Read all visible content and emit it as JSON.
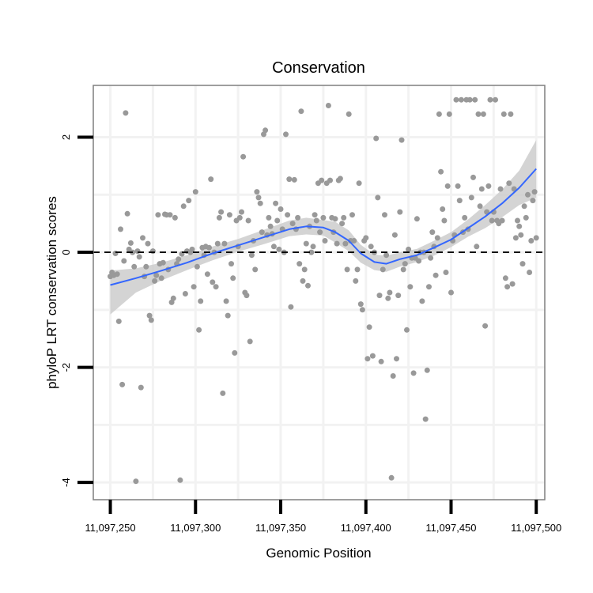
{
  "chart_data": {
    "type": "scatter",
    "title": "Conservation",
    "xlabel": "Genomic Position",
    "ylabel": "phyloP LRT conservation scores",
    "xlim": [
      11097240,
      11097505
    ],
    "ylim": [
      -4.3,
      2.9
    ],
    "grid": true,
    "x_ticks": [
      11097250,
      11097300,
      11097350,
      11097400,
      11097450,
      11097500
    ],
    "x_tick_labels": [
      "11,097,250",
      "11,097,300",
      "11,097,350",
      "11,097,400",
      "11,097,450",
      "11,097,500"
    ],
    "y_ticks": [
      -4,
      -2,
      0,
      2
    ],
    "y_tick_labels": [
      "-4",
      "-2",
      "0",
      "2"
    ],
    "reference_line": {
      "y": 0,
      "style": "dashed",
      "color": "#000000"
    },
    "colors": {
      "points": "#999999",
      "smooth": "#3366ff",
      "ribbon": "#cccccc",
      "panel_border": "#7f7f7f",
      "grid": "#f2f2f2"
    },
    "smooth": {
      "x": [
        11097250,
        11097265,
        11097280,
        11097295,
        11097310,
        11097325,
        11097340,
        11097355,
        11097365,
        11097375,
        11097382,
        11097390,
        11097397,
        11097405,
        11097412,
        11097420,
        11097430,
        11097440,
        11097450,
        11097460,
        11097470,
        11097480,
        11097490,
        11097500
      ],
      "y": [
        -0.57,
        -0.45,
        -0.32,
        -0.18,
        -0.02,
        0.12,
        0.26,
        0.4,
        0.45,
        0.43,
        0.35,
        0.2,
        -0.02,
        -0.17,
        -0.2,
        -0.12,
        -0.05,
        0.08,
        0.22,
        0.42,
        0.62,
        0.85,
        1.12,
        1.45
      ],
      "upper": [
        -0.32,
        -0.28,
        -0.18,
        -0.05,
        0.1,
        0.23,
        0.39,
        0.55,
        0.6,
        0.56,
        0.53,
        0.38,
        0.13,
        -0.04,
        -0.06,
        0.0,
        0.06,
        0.2,
        0.35,
        0.57,
        0.82,
        1.09,
        1.42,
        1.95
      ],
      "lower": [
        -1.08,
        -0.7,
        -0.49,
        -0.31,
        -0.14,
        0.01,
        0.14,
        0.28,
        0.31,
        0.29,
        0.17,
        0.02,
        -0.18,
        -0.31,
        -0.34,
        -0.25,
        -0.17,
        -0.06,
        0.09,
        0.27,
        0.42,
        0.61,
        0.82,
        0.95
      ]
    },
    "points": [
      [
        11097250,
        -0.42
      ],
      [
        11097251,
        -0.35
      ],
      [
        11097252,
        -0.4
      ],
      [
        11097253,
        -0.02
      ],
      [
        11097254,
        -0.38
      ],
      [
        11097255,
        -1.2
      ],
      [
        11097256,
        0.4
      ],
      [
        11097257,
        -2.3
      ],
      [
        11097258,
        -0.15
      ],
      [
        11097259,
        2.42
      ],
      [
        11097260,
        0.67
      ],
      [
        11097261,
        0.05
      ],
      [
        11097262,
        0.16
      ],
      [
        11097263,
        0.0
      ],
      [
        11097264,
        -0.25
      ],
      [
        11097265,
        -3.98
      ],
      [
        11097266,
        0.02
      ],
      [
        11097267,
        -0.08
      ],
      [
        11097268,
        -2.35
      ],
      [
        11097269,
        0.25
      ],
      [
        11097270,
        -0.42
      ],
      [
        11097271,
        -0.25
      ],
      [
        11097272,
        0.15
      ],
      [
        11097273,
        -1.1
      ],
      [
        11097274,
        -1.18
      ],
      [
        11097275,
        0.02
      ],
      [
        11097276,
        -0.5
      ],
      [
        11097277,
        -0.4
      ],
      [
        11097278,
        0.65
      ],
      [
        11097279,
        -0.2
      ],
      [
        11097280,
        -0.45
      ],
      [
        11097281,
        -0.18
      ],
      [
        11097282,
        0.66
      ],
      [
        11097283,
        0.65
      ],
      [
        11097284,
        -0.3
      ],
      [
        11097285,
        0.65
      ],
      [
        11097286,
        -0.87
      ],
      [
        11097287,
        -0.8
      ],
      [
        11097288,
        0.6
      ],
      [
        11097289,
        -0.2
      ],
      [
        11097290,
        -0.12
      ],
      [
        11097291,
        -3.96
      ],
      [
        11097292,
        -0.03
      ],
      [
        11097293,
        0.8
      ],
      [
        11097294,
        -0.72
      ],
      [
        11097295,
        0.02
      ],
      [
        11097296,
        0.9
      ],
      [
        11097297,
        0.0
      ],
      [
        11097298,
        0.05
      ],
      [
        11097299,
        -0.6
      ],
      [
        11097300,
        1.05
      ],
      [
        11097301,
        -0.25
      ],
      [
        11097302,
        -1.35
      ],
      [
        11097303,
        -0.85
      ],
      [
        11097304,
        0.08
      ],
      [
        11097305,
        -0.05
      ],
      [
        11097306,
        0.1
      ],
      [
        11097307,
        -0.38
      ],
      [
        11097308,
        0.08
      ],
      [
        11097309,
        1.27
      ],
      [
        11097310,
        -0.52
      ],
      [
        11097311,
        0.0
      ],
      [
        11097312,
        -0.6
      ],
      [
        11097313,
        0.15
      ],
      [
        11097314,
        0.6
      ],
      [
        11097315,
        0.7
      ],
      [
        11097316,
        -2.45
      ],
      [
        11097317,
        0.15
      ],
      [
        11097318,
        -0.85
      ],
      [
        11097319,
        -1.1
      ],
      [
        11097320,
        0.65
      ],
      [
        11097321,
        -0.2
      ],
      [
        11097322,
        -0.45
      ],
      [
        11097323,
        -1.75
      ],
      [
        11097324,
        0.55
      ],
      [
        11097325,
        0.1
      ],
      [
        11097326,
        0.6
      ],
      [
        11097327,
        0.7
      ],
      [
        11097328,
        1.66
      ],
      [
        11097329,
        -0.7
      ],
      [
        11097330,
        -0.75
      ],
      [
        11097331,
        0.55
      ],
      [
        11097332,
        -1.55
      ],
      [
        11097333,
        -0.05
      ],
      [
        11097334,
        0.2
      ],
      [
        11097335,
        -0.3
      ],
      [
        11097336,
        1.05
      ],
      [
        11097337,
        0.95
      ],
      [
        11097338,
        0.85
      ],
      [
        11097339,
        0.35
      ],
      [
        11097340,
        2.05
      ],
      [
        11097341,
        2.12
      ],
      [
        11097342,
        0.3
      ],
      [
        11097343,
        0.6
      ],
      [
        11097344,
        0.45
      ],
      [
        11097345,
        0.32
      ],
      [
        11097346,
        0.1
      ],
      [
        11097347,
        0.85
      ],
      [
        11097348,
        0.55
      ],
      [
        11097349,
        0.05
      ],
      [
        11097350,
        0.75
      ],
      [
        11097351,
        0.4
      ],
      [
        11097352,
        0.0
      ],
      [
        11097353,
        2.05
      ],
      [
        11097354,
        0.65
      ],
      [
        11097355,
        1.27
      ],
      [
        11097356,
        -0.95
      ],
      [
        11097357,
        0.5
      ],
      [
        11097358,
        1.26
      ],
      [
        11097359,
        0.4
      ],
      [
        11097360,
        0.6
      ],
      [
        11097361,
        -0.2
      ],
      [
        11097362,
        2.45
      ],
      [
        11097363,
        -0.5
      ],
      [
        11097364,
        -0.3
      ],
      [
        11097365,
        0.15
      ],
      [
        11097366,
        -0.58
      ],
      [
        11097367,
        0.45
      ],
      [
        11097368,
        0.0
      ],
      [
        11097369,
        0.1
      ],
      [
        11097370,
        0.65
      ],
      [
        11097371,
        0.55
      ],
      [
        11097372,
        1.2
      ],
      [
        11097373,
        0.35
      ],
      [
        11097374,
        1.25
      ],
      [
        11097375,
        0.6
      ],
      [
        11097376,
        0.2
      ],
      [
        11097377,
        1.2
      ],
      [
        11097378,
        2.55
      ],
      [
        11097379,
        1.25
      ],
      [
        11097380,
        0.6
      ],
      [
        11097381,
        0.35
      ],
      [
        11097382,
        0.58
      ],
      [
        11097383,
        0.15
      ],
      [
        11097384,
        1.25
      ],
      [
        11097385,
        1.28
      ],
      [
        11097386,
        0.5
      ],
      [
        11097387,
        0.6
      ],
      [
        11097388,
        0.15
      ],
      [
        11097389,
        -0.3
      ],
      [
        11097390,
        2.4
      ],
      [
        11097391,
        0.2
      ],
      [
        11097392,
        0.65
      ],
      [
        11097393,
        0.2
      ],
      [
        11097394,
        -0.5
      ],
      [
        11097395,
        -0.3
      ],
      [
        11097396,
        1.2
      ],
      [
        11097397,
        -0.9
      ],
      [
        11097398,
        -1.0
      ],
      [
        11097399,
        0.2
      ],
      [
        11097400,
        0.25
      ],
      [
        11097401,
        -1.85
      ],
      [
        11097402,
        -1.3
      ],
      [
        11097403,
        0.1
      ],
      [
        11097404,
        -1.8
      ],
      [
        11097405,
        0.0
      ],
      [
        11097406,
        1.98
      ],
      [
        11097407,
        0.95
      ],
      [
        11097408,
        -0.75
      ],
      [
        11097409,
        -1.9
      ],
      [
        11097410,
        -0.3
      ],
      [
        11097411,
        0.65
      ],
      [
        11097412,
        -0.05
      ],
      [
        11097413,
        -0.8
      ],
      [
        11097414,
        -0.7
      ],
      [
        11097415,
        -3.92
      ],
      [
        11097416,
        -2.15
      ],
      [
        11097417,
        0.3
      ],
      [
        11097418,
        -1.85
      ],
      [
        11097419,
        -0.75
      ],
      [
        11097420,
        0.7
      ],
      [
        11097421,
        1.95
      ],
      [
        11097422,
        -0.3
      ],
      [
        11097423,
        -0.2
      ],
      [
        11097424,
        -1.35
      ],
      [
        11097425,
        0.05
      ],
      [
        11097426,
        -0.6
      ],
      [
        11097427,
        -0.1
      ],
      [
        11097428,
        -2.1
      ],
      [
        11097429,
        -0.1
      ],
      [
        11097430,
        0.58
      ],
      [
        11097431,
        -0.15
      ],
      [
        11097432,
        0.0
      ],
      [
        11097433,
        -0.85
      ],
      [
        11097434,
        0.0
      ],
      [
        11097435,
        -2.9
      ],
      [
        11097436,
        -2.05
      ],
      [
        11097437,
        -0.6
      ],
      [
        11097438,
        -0.1
      ],
      [
        11097439,
        0.35
      ],
      [
        11097440,
        0.1
      ],
      [
        11097441,
        -0.4
      ],
      [
        11097442,
        0.25
      ],
      [
        11097443,
        2.4
      ],
      [
        11097444,
        1.4
      ],
      [
        11097445,
        0.75
      ],
      [
        11097446,
        0.55
      ],
      [
        11097447,
        -0.35
      ],
      [
        11097448,
        1.15
      ],
      [
        11097449,
        2.4
      ],
      [
        11097450,
        -0.7
      ],
      [
        11097451,
        0.2
      ],
      [
        11097452,
        0.3
      ],
      [
        11097453,
        2.65
      ],
      [
        11097454,
        1.15
      ],
      [
        11097455,
        0.9
      ],
      [
        11097456,
        2.65
      ],
      [
        11097457,
        0.35
      ],
      [
        11097458,
        0.6
      ],
      [
        11097459,
        2.65
      ],
      [
        11097460,
        0.4
      ],
      [
        11097461,
        2.65
      ],
      [
        11097462,
        0.95
      ],
      [
        11097463,
        1.3
      ],
      [
        11097464,
        2.65
      ],
      [
        11097465,
        0.1
      ],
      [
        11097466,
        2.4
      ],
      [
        11097467,
        0.8
      ],
      [
        11097468,
        1.1
      ],
      [
        11097469,
        2.4
      ],
      [
        11097470,
        -1.28
      ],
      [
        11097471,
        0.7
      ],
      [
        11097472,
        1.15
      ],
      [
        11097473,
        2.65
      ],
      [
        11097474,
        0.55
      ],
      [
        11097475,
        0.7
      ],
      [
        11097476,
        2.65
      ],
      [
        11097477,
        0.55
      ],
      [
        11097478,
        0.5
      ],
      [
        11097479,
        1.1
      ],
      [
        11097480,
        0.55
      ],
      [
        11097481,
        2.4
      ],
      [
        11097482,
        -0.45
      ],
      [
        11097483,
        -0.6
      ],
      [
        11097484,
        1.2
      ],
      [
        11097485,
        2.4
      ],
      [
        11097486,
        -0.55
      ],
      [
        11097487,
        1.1
      ],
      [
        11097488,
        0.25
      ],
      [
        11097489,
        0.55
      ],
      [
        11097490,
        0.45
      ],
      [
        11097491,
        0.3
      ],
      [
        11097492,
        -0.2
      ],
      [
        11097493,
        0.8
      ],
      [
        11097494,
        0.6
      ],
      [
        11097495,
        1.0
      ],
      [
        11097496,
        -0.35
      ],
      [
        11097497,
        0.2
      ],
      [
        11097498,
        0.9
      ],
      [
        11097499,
        1.05
      ],
      [
        11097500,
        0.25
      ]
    ]
  }
}
